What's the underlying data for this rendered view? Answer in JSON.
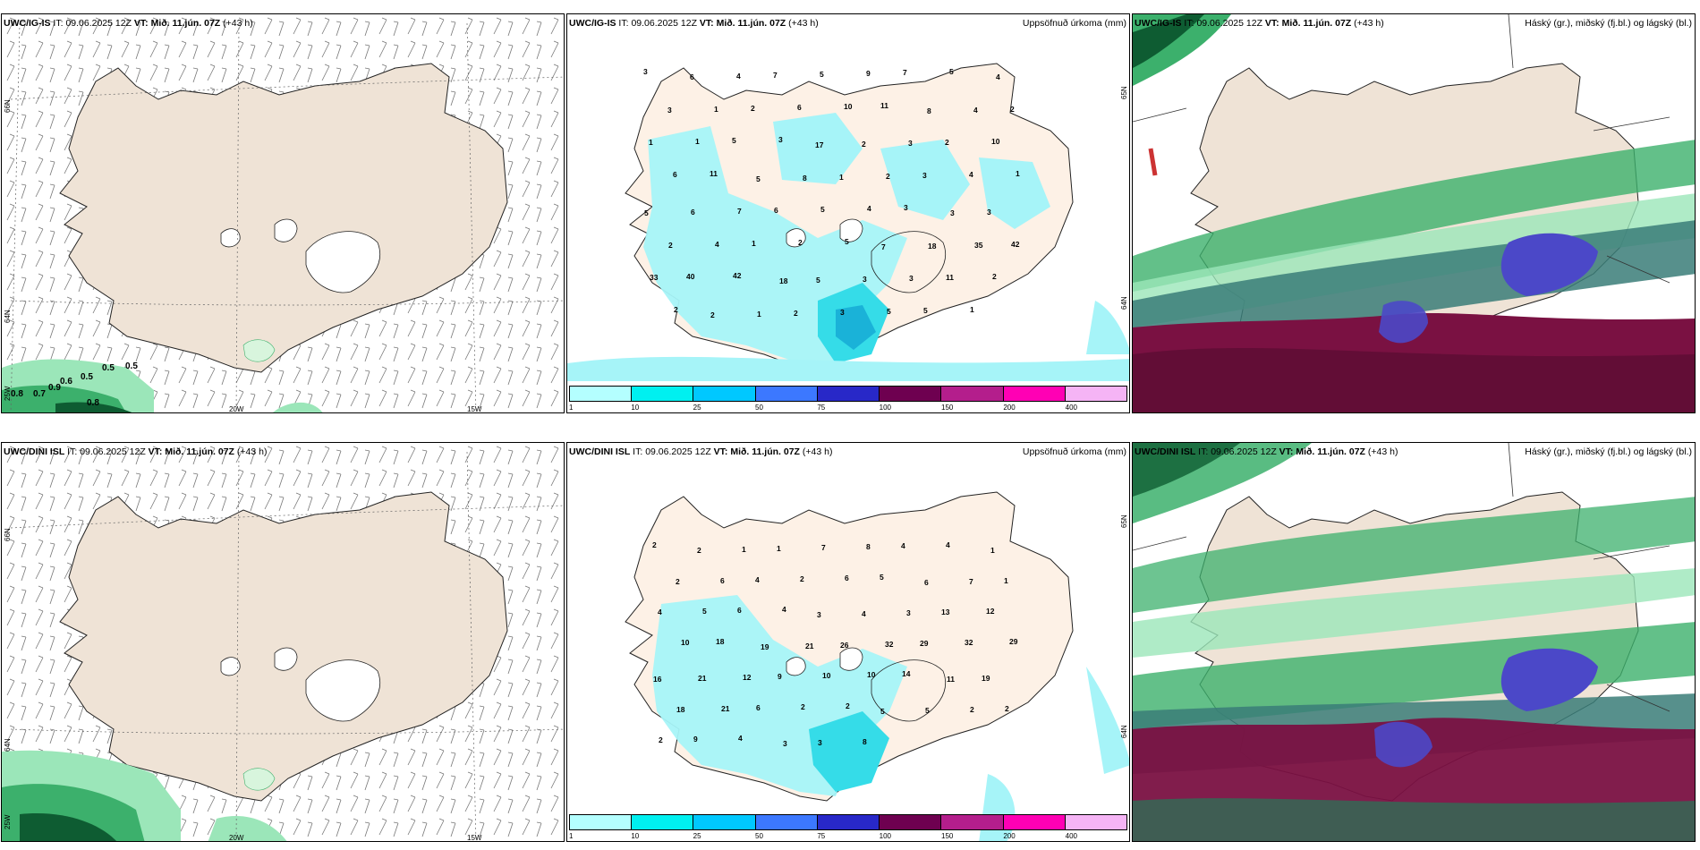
{
  "rows": [
    {
      "model": "UWC/IG-IS",
      "wind_values": [
        "0.5",
        "0.5",
        "0.5",
        "0.6",
        "0.9",
        "0.7",
        "0.8",
        "0.8"
      ],
      "precip_values": [
        "3",
        "6",
        "4",
        "7",
        "5",
        "9",
        "7",
        "5",
        "4",
        "3",
        "1",
        "2",
        "6",
        "10",
        "11",
        "8",
        "4",
        "2",
        "1",
        "1",
        "5",
        "3",
        "17",
        "2",
        "3",
        "2",
        "10",
        "6",
        "11",
        "5",
        "8",
        "1",
        "2",
        "3",
        "4",
        "1",
        "5",
        "6",
        "7",
        "6",
        "5",
        "4",
        "3",
        "3",
        "3",
        "2",
        "4",
        "1",
        "2",
        "5",
        "7",
        "18",
        "35",
        "42",
        "33",
        "40",
        "42",
        "18",
        "5",
        "3",
        "3",
        "11",
        "2",
        "2",
        "2",
        "1",
        "2",
        "3",
        "5",
        "5",
        "1"
      ],
      "precip_header": "Uppsöfnuð úrkoma (mm)",
      "cloud_header": "Háský (gr.), miðský (fj.bl.) og lágský (bl.)"
    },
    {
      "model": "UWC/DINI ISL",
      "wind_values": [],
      "precip_values": [
        "2",
        "2",
        "1",
        "1",
        "7",
        "8",
        "4",
        "4",
        "1",
        "2",
        "6",
        "4",
        "2",
        "6",
        "5",
        "6",
        "7",
        "1",
        "4",
        "5",
        "6",
        "4",
        "3",
        "4",
        "3",
        "13",
        "12",
        "10",
        "18",
        "19",
        "21",
        "26",
        "32",
        "29",
        "32",
        "29",
        "16",
        "21",
        "12",
        "9",
        "10",
        "10",
        "14",
        "11",
        "19",
        "18",
        "21",
        "6",
        "2",
        "2",
        "5",
        "5",
        "2",
        "2",
        "2",
        "9",
        "4",
        "3",
        "3",
        "8"
      ],
      "precip_header": "Uppsöfnuð úrkoma (mm)",
      "cloud_header": "Háský (gr.), miðský (fj.bl.) og lágský (bl.)"
    }
  ],
  "header": {
    "it_label": "IT:",
    "it_value": "09.06.2025 12Z",
    "vt_label": "VT:",
    "vt_value": "Mið. 11.jún. 07Z",
    "lead": "(+43 h)"
  },
  "coords": {
    "lat66": "66N",
    "lat64": "64N",
    "lon25": "25W",
    "lon20": "20W",
    "lon15": "15W",
    "lat65": "65N"
  },
  "legend": {
    "ticks": [
      "1",
      "10",
      "25",
      "50",
      "75",
      "100",
      "150",
      "200",
      "400"
    ],
    "colors": [
      "#b4ffff",
      "#00f0f0",
      "#00c8ff",
      "#3c78ff",
      "#2828c8",
      "#6e0050",
      "#b41e8c",
      "#ff00b4",
      "#f5b4f5"
    ]
  },
  "colors": {
    "land": "#efe3d6",
    "land_precip_bg": "#fdf1e6",
    "precip_light": "#a6f4f8",
    "precip_mid": "#35dce8",
    "precip_heavy": "#1ab2d8",
    "green_dark": "#0e5c32",
    "green_mid": "#3cb06c",
    "green_light": "#9be6b9",
    "maroon": "#7a1142",
    "blue_low": "#4b48c8",
    "teal": "#3a7d78"
  }
}
